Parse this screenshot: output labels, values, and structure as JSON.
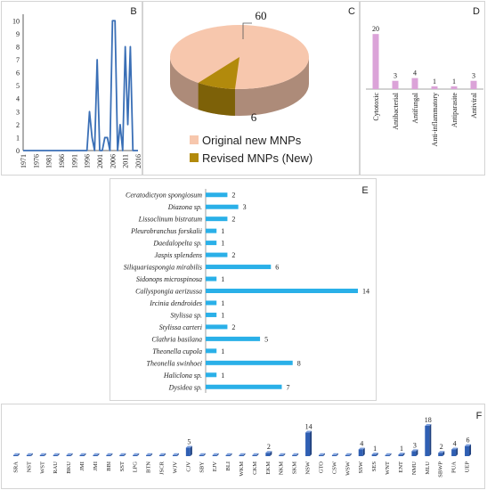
{
  "panels": {
    "b": "B",
    "c": "C",
    "d": "D",
    "e": "E",
    "f": "F"
  },
  "chart_data": [
    {
      "type": "line",
      "panel": "B",
      "x": [
        1971,
        1972,
        1973,
        1974,
        1975,
        1976,
        1977,
        1978,
        1979,
        1980,
        1981,
        1982,
        1983,
        1984,
        1985,
        1986,
        1987,
        1988,
        1989,
        1990,
        1991,
        1992,
        1993,
        1994,
        1995,
        1996,
        1997,
        1998,
        1999,
        2000,
        2001,
        2002,
        2003,
        2004,
        2005,
        2006,
        2007,
        2008,
        2009,
        2010,
        2011,
        2012,
        2013,
        2014,
        2015,
        2016
      ],
      "y": [
        0,
        0,
        0,
        0,
        0,
        0,
        0,
        0,
        0,
        0,
        0,
        0,
        0,
        0,
        0,
        0,
        0,
        0,
        0,
        0,
        0,
        0,
        0,
        0,
        0,
        0,
        3,
        1,
        0,
        7,
        0,
        0,
        1,
        1,
        0,
        10,
        10,
        0,
        2,
        0,
        8,
        2,
        8,
        0,
        0,
        0
      ],
      "xticks": [
        "1971",
        "1976",
        "1981",
        "1986",
        "1991",
        "1996",
        "2001",
        "2006",
        "2011",
        "2016"
      ],
      "yticks": [
        "0",
        "1",
        "2",
        "3",
        "4",
        "5",
        "6",
        "7",
        "8",
        "9",
        "10"
      ],
      "ylim": [
        0,
        10.5
      ],
      "color": "#3a6fb6"
    },
    {
      "type": "pie",
      "panel": "C",
      "slices": [
        {
          "label": "Original new MNPs",
          "value": 60,
          "color": "#f7c7ad"
        },
        {
          "label": "Revised MNPs (New)",
          "value": 6,
          "color": "#b28a0c"
        }
      ],
      "data_labels": [
        "60",
        "6"
      ],
      "legend": "bottom"
    },
    {
      "type": "bar",
      "panel": "D",
      "categories": [
        "Cytotoxic",
        "Antibacterial",
        "Antifungal",
        "Anti-inflammatory",
        "Antiparasite",
        "Antiviral"
      ],
      "values": [
        20,
        3,
        4,
        1,
        1,
        3
      ],
      "color": "#dba3d8",
      "ylim": [
        0,
        22
      ]
    },
    {
      "type": "bar",
      "panel": "E",
      "orientation": "horizontal",
      "categories": [
        "Ceratodictyon spongiosum",
        "Diazona sp.",
        "Lissoclinum bistratum",
        "Pleurobranchus forskalii",
        "Daedalopelta sp.",
        "Jaspis splendens",
        "Siliquariaspongia mirabilis",
        "Sidonops microspinosa",
        "Callyspongia aerizussa",
        "Ircinia dendroides",
        "Stylissa sp.",
        "Stylissa carteri",
        "Clathria basilana",
        "Theonella cupola",
        "Theonella swinhoei",
        "Haliclona sp.",
        "Dysidea sp."
      ],
      "values": [
        2,
        3,
        2,
        1,
        1,
        2,
        6,
        1,
        14,
        1,
        1,
        2,
        5,
        1,
        8,
        1,
        7
      ],
      "color": "#2ab0e8",
      "xlim": [
        0,
        14
      ]
    },
    {
      "type": "bar",
      "panel": "F",
      "categories": [
        "SRA",
        "NST",
        "WST",
        "RAU",
        "BKU",
        "JMI",
        "JMI",
        "BBI",
        "SST",
        "LPG",
        "BTN",
        "JSCR",
        "WJV",
        "CJV",
        "SBY",
        "EJV",
        "BLI",
        "WKM",
        "CKM",
        "EKM",
        "NKM",
        "SKM",
        "NSW",
        "GTO",
        "CSW",
        "WSW",
        "SSW",
        "SES",
        "WNT",
        "ENT",
        "NMU",
        "MLU",
        "SBWP",
        "PUA",
        "UEP"
      ],
      "values": [
        0,
        0,
        0,
        0,
        0,
        0,
        0,
        0,
        0,
        0,
        0,
        0,
        0,
        5,
        0,
        0,
        0,
        0,
        0,
        2,
        0,
        0,
        14,
        0,
        0,
        0,
        4,
        1,
        0,
        1,
        3,
        18,
        2,
        4,
        6
      ],
      "color": "#2f5fb3",
      "ylim": [
        0,
        18
      ]
    }
  ]
}
